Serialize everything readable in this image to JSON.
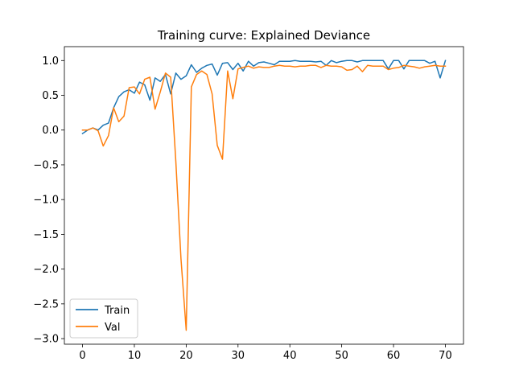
{
  "chart_data": {
    "type": "line",
    "title": "Training curve: Explained Deviance",
    "xlabel": "",
    "ylabel": "",
    "xlim": [
      -3.5,
      73.5
    ],
    "ylim": [
      -3.08,
      1.2
    ],
    "xticks": [
      0,
      10,
      20,
      30,
      40,
      50,
      60,
      70
    ],
    "xtick_labels": [
      "0",
      "10",
      "20",
      "30",
      "40",
      "50",
      "60",
      "70"
    ],
    "yticks": [
      1.0,
      0.5,
      0.0,
      -0.5,
      -1.0,
      -1.5,
      -2.0,
      -2.5,
      -3.0
    ],
    "ytick_labels": [
      "1.0",
      "0.5",
      "0.0",
      "−0.5",
      "−1.0",
      "−1.5",
      "−2.0",
      "−2.5",
      "−3.0"
    ],
    "grid": false,
    "legend_position": "lower-left",
    "series": [
      {
        "name": "Train",
        "color": "#1f77b4",
        "x": [
          0,
          1,
          2,
          3,
          4,
          5,
          6,
          7,
          8,
          9,
          10,
          11,
          12,
          13,
          14,
          15,
          16,
          17,
          18,
          19,
          20,
          21,
          22,
          23,
          24,
          25,
          26,
          27,
          28,
          29,
          30,
          31,
          32,
          33,
          34,
          35,
          36,
          37,
          38,
          39,
          40,
          41,
          42,
          43,
          44,
          45,
          46,
          47,
          48,
          49,
          50,
          51,
          52,
          53,
          54,
          55,
          56,
          57,
          58,
          59,
          60,
          61,
          62,
          63,
          64,
          65,
          66,
          67,
          68,
          69,
          70
        ],
        "y": [
          -0.05,
          0.0,
          0.03,
          0.0,
          0.07,
          0.1,
          0.32,
          0.48,
          0.55,
          0.58,
          0.53,
          0.69,
          0.65,
          0.43,
          0.75,
          0.7,
          0.8,
          0.52,
          0.82,
          0.73,
          0.78,
          0.94,
          0.83,
          0.89,
          0.93,
          0.95,
          0.79,
          0.96,
          0.97,
          0.87,
          0.96,
          0.85,
          0.99,
          0.92,
          0.97,
          0.98,
          0.96,
          0.94,
          0.99,
          0.99,
          0.99,
          1.0,
          0.99,
          0.99,
          0.99,
          0.98,
          0.99,
          0.93,
          1.0,
          0.97,
          0.99,
          1.0,
          1.0,
          0.98,
          1.0,
          1.0,
          1.0,
          1.0,
          1.0,
          0.88,
          1.0,
          1.0,
          0.88,
          1.0,
          1.0,
          1.0,
          1.0,
          0.96,
          0.99,
          0.75,
          1.0
        ]
      },
      {
        "name": "Val",
        "color": "#ff7f0e",
        "x": [
          0,
          1,
          2,
          3,
          4,
          5,
          6,
          7,
          8,
          9,
          10,
          11,
          12,
          13,
          14,
          15,
          16,
          17,
          18,
          19,
          20,
          21,
          22,
          23,
          24,
          25,
          26,
          27,
          28,
          29,
          30,
          31,
          32,
          33,
          34,
          35,
          36,
          37,
          38,
          39,
          40,
          41,
          42,
          43,
          44,
          45,
          46,
          47,
          48,
          49,
          50,
          51,
          52,
          53,
          54,
          55,
          56,
          57,
          58,
          59,
          60,
          61,
          62,
          63,
          64,
          65,
          66,
          67,
          68,
          69,
          70
        ],
        "y": [
          0.0,
          0.0,
          0.03,
          -0.01,
          -0.23,
          -0.08,
          0.32,
          0.12,
          0.2,
          0.61,
          0.62,
          0.52,
          0.73,
          0.76,
          0.3,
          0.55,
          0.82,
          0.76,
          -0.45,
          -1.85,
          -2.88,
          0.62,
          0.8,
          0.85,
          0.8,
          0.52,
          -0.22,
          -0.42,
          0.85,
          0.45,
          0.88,
          0.9,
          0.92,
          0.89,
          0.91,
          0.9,
          0.9,
          0.92,
          0.93,
          0.92,
          0.92,
          0.91,
          0.92,
          0.92,
          0.93,
          0.93,
          0.9,
          0.93,
          0.92,
          0.92,
          0.91,
          0.86,
          0.87,
          0.92,
          0.84,
          0.93,
          0.92,
          0.92,
          0.92,
          0.87,
          0.89,
          0.9,
          0.93,
          0.92,
          0.91,
          0.89,
          0.91,
          0.92,
          0.93,
          0.92,
          0.92
        ]
      }
    ]
  }
}
